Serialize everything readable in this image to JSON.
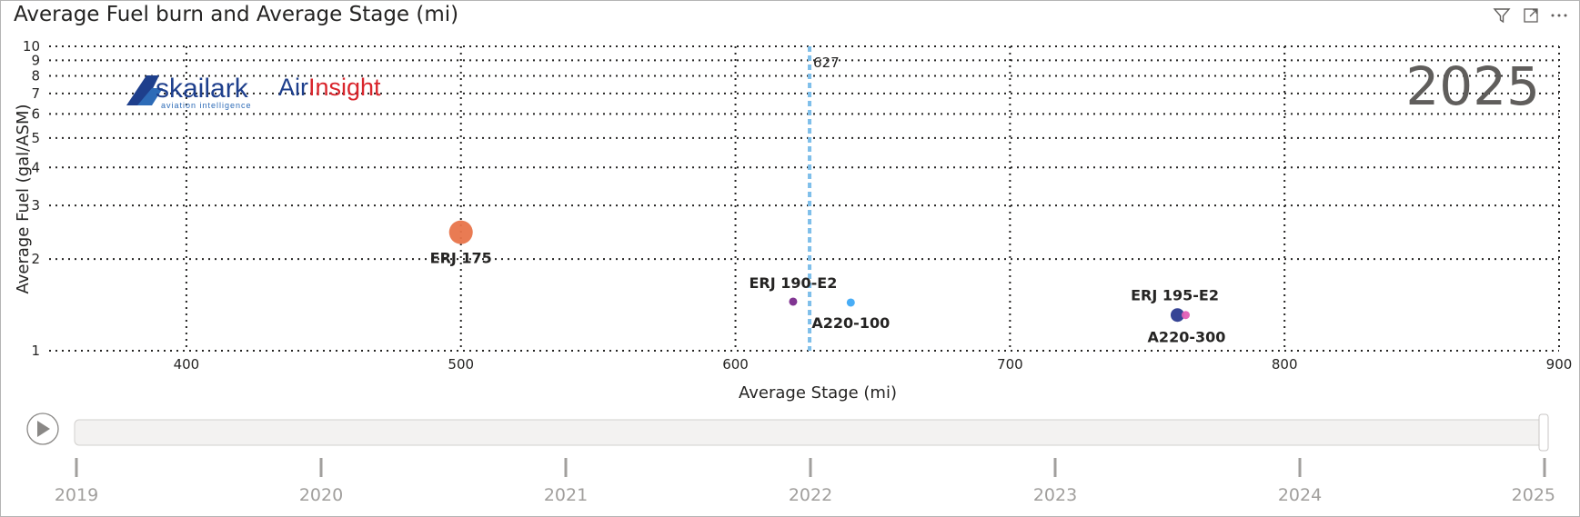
{
  "header": {
    "title": "Average Fuel burn and Average Stage (mi)",
    "icons": [
      "filter-icon",
      "focus-mode-icon",
      "more-options-icon"
    ]
  },
  "watermark": {
    "brand_left": "skailark",
    "brand_left_tagline": "aviation intelligence",
    "brand_right_a": "Air",
    "brand_right_b": "Insight"
  },
  "current_year": "2025",
  "chart_data": {
    "type": "scatter",
    "xlabel": "Average Stage (mi)",
    "ylabel": "Average Fuel (gal/ASM)",
    "xlim": [
      350,
      900
    ],
    "ylim": [
      1,
      10
    ],
    "y_scale": "log",
    "grid": true,
    "x_ticks": [
      "400",
      "500",
      "600",
      "700",
      "800",
      "900"
    ],
    "y_ticks": [
      "1",
      "2",
      "3",
      "4",
      "5",
      "6",
      "7",
      "8",
      "9",
      "10"
    ],
    "reference_line": {
      "axis": "x",
      "value": 627,
      "label": "627",
      "color": "#7fbfea"
    },
    "points": [
      {
        "label": "ERJ 175",
        "x": 500,
        "y": 2.45,
        "size": "large",
        "color": "#e8744a"
      },
      {
        "label": "ERJ 190-E2",
        "x": 621,
        "y": 1.45,
        "size": "small",
        "color": "#7a2a8c"
      },
      {
        "label": "A220-100",
        "x": 642,
        "y": 1.44,
        "size": "small",
        "color": "#3fa9f5"
      },
      {
        "label": "A220-300",
        "x": 761,
        "y": 1.31,
        "size": "medium",
        "color": "#2b3a8f"
      },
      {
        "label": "ERJ 195-E2",
        "x": 764,
        "y": 1.31,
        "size": "small",
        "color": "#e25fb6"
      }
    ]
  },
  "timeline": {
    "years": [
      "2019",
      "2020",
      "2021",
      "2022",
      "2023",
      "2024",
      "2025"
    ],
    "selected": "2025",
    "progress": 1.0
  }
}
